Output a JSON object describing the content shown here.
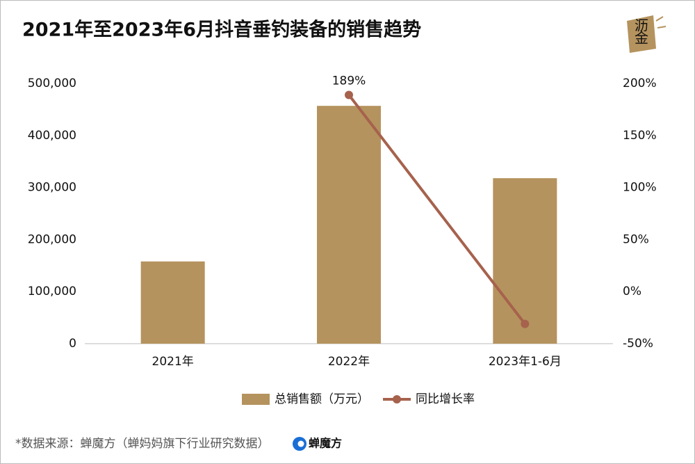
{
  "chart_data": {
    "type": "combo",
    "title": "2021年至2023年6月抖音垂钓装备的销售趋势",
    "categories": [
      "2021年",
      "2022年",
      "2023年1-6月"
    ],
    "series": [
      {
        "name": "总销售额（万元）",
        "type": "bar",
        "color": "#b5935e",
        "values": [
          158000,
          457000,
          318000
        ]
      },
      {
        "name": "同比增长率",
        "type": "line",
        "axis": "y2",
        "color": "#a6624d",
        "values": [
          null,
          189,
          -31
        ],
        "value_labels": [
          null,
          "189%",
          null
        ]
      }
    ],
    "ylim": [
      0,
      500000
    ],
    "yticks": [
      0,
      {
        "value": 100000,
        "label": "100,000"
      },
      {
        "value": 200000,
        "label": "200,000"
      },
      {
        "value": 300000,
        "label": "300,000"
      },
      {
        "value": 400000,
        "label": "400,000"
      },
      {
        "value": 500000,
        "label": "500,000"
      }
    ],
    "y2lim": [
      -50,
      200
    ],
    "y2ticks": [
      {
        "value": -50,
        "label": "-50%"
      },
      {
        "value": 0,
        "label": "0%"
      },
      {
        "value": 50,
        "label": "50%"
      },
      {
        "value": 100,
        "label": "100%"
      },
      {
        "value": 150,
        "label": "150%"
      },
      {
        "value": 200,
        "label": "200%"
      }
    ],
    "grid": false,
    "legend": "bottom",
    "watermark": "沥金",
    "source": "*数据来源：蝉魔方（蝉妈妈旗下行业研究数据）",
    "brand": "蝉魔方"
  }
}
